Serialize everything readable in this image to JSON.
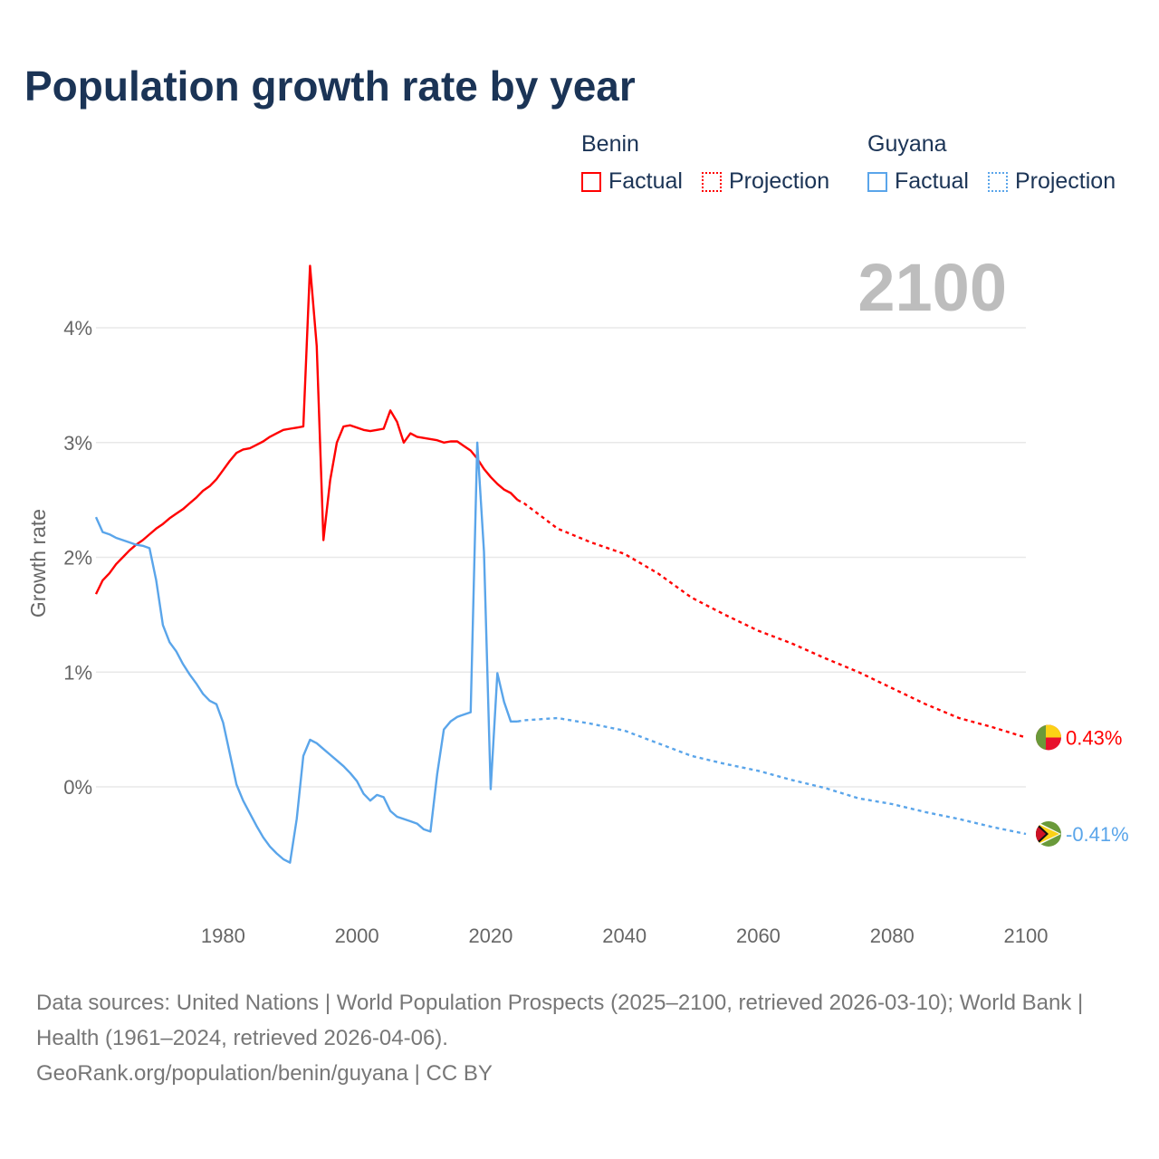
{
  "title": "Population growth rate by year",
  "legend": {
    "groups": [
      {
        "name": "Benin",
        "color": "#ff0000",
        "factual": "Factual",
        "projection": "Projection"
      },
      {
        "name": "Guyana",
        "color": "#5aa5ea",
        "factual": "Factual",
        "projection": "Projection"
      }
    ]
  },
  "year_label": "2100",
  "footer": {
    "sources": "Data sources: United Nations | World Population Prospects (2025–2100, retrieved 2026-03-10); World Bank | Health (1961–2024, retrieved 2026-04-06).",
    "credit": "GeoRank.org/population/benin/guyana | CC BY"
  },
  "chart_data": {
    "type": "line",
    "title": "Population growth rate by year",
    "xlabel": "",
    "ylabel": "Growth rate",
    "xlim": [
      1961,
      2100
    ],
    "ylim": [
      -0.9,
      4.6
    ],
    "x_ticks": [
      1980,
      2000,
      2020,
      2040,
      2060,
      2080,
      2100
    ],
    "x_tick_labels": [
      "1980",
      "2000",
      "2020",
      "2040",
      "2060",
      "2080",
      "2100"
    ],
    "y_ticks": [
      0,
      1,
      2,
      3,
      4
    ],
    "y_tick_labels": [
      "0%",
      "1%",
      "2%",
      "3%",
      "4%"
    ],
    "grid": true,
    "legend_position": "top-right",
    "series": [
      {
        "name": "Benin",
        "kind": "factual",
        "color": "#ff0000",
        "x": [
          1961,
          1962,
          1963,
          1964,
          1965,
          1966,
          1967,
          1968,
          1969,
          1970,
          1971,
          1972,
          1973,
          1974,
          1975,
          1976,
          1977,
          1978,
          1979,
          1980,
          1981,
          1982,
          1983,
          1984,
          1985,
          1986,
          1987,
          1988,
          1989,
          1990,
          1991,
          1992,
          1993,
          1994,
          1995,
          1996,
          1997,
          1998,
          1999,
          2000,
          2001,
          2002,
          2003,
          2004,
          2005,
          2006,
          2007,
          2008,
          2009,
          2010,
          2011,
          2012,
          2013,
          2014,
          2015,
          2016,
          2017,
          2018,
          2019,
          2020,
          2021,
          2022,
          2023,
          2024
        ],
        "y": [
          1.68,
          1.8,
          1.86,
          1.94,
          2.0,
          2.06,
          2.11,
          2.15,
          2.2,
          2.25,
          2.29,
          2.34,
          2.38,
          2.42,
          2.47,
          2.52,
          2.58,
          2.62,
          2.68,
          2.76,
          2.84,
          2.91,
          2.94,
          2.95,
          2.98,
          3.01,
          3.05,
          3.08,
          3.11,
          3.12,
          3.13,
          3.14,
          4.54,
          3.84,
          2.15,
          2.67,
          3.0,
          3.14,
          3.15,
          3.13,
          3.11,
          3.1,
          3.11,
          3.12,
          3.28,
          3.18,
          3.0,
          3.08,
          3.05,
          3.04,
          3.03,
          3.02,
          3.0,
          3.01,
          3.01,
          2.97,
          2.93,
          2.86,
          2.77,
          2.7,
          2.64,
          2.59,
          2.56,
          2.5
        ]
      },
      {
        "name": "Benin",
        "kind": "projection",
        "color": "#ff0000",
        "x": [
          2024,
          2025,
          2030,
          2035,
          2040,
          2045,
          2050,
          2055,
          2060,
          2065,
          2070,
          2075,
          2080,
          2085,
          2090,
          2095,
          2100
        ],
        "y": [
          2.5,
          2.47,
          2.25,
          2.13,
          2.03,
          1.86,
          1.65,
          1.5,
          1.36,
          1.25,
          1.12,
          1.0,
          0.86,
          0.72,
          0.6,
          0.52,
          0.43
        ]
      },
      {
        "name": "Guyana",
        "kind": "factual",
        "color": "#5aa5ea",
        "x": [
          1961,
          1962,
          1963,
          1964,
          1965,
          1966,
          1967,
          1968,
          1969,
          1970,
          1971,
          1972,
          1973,
          1974,
          1975,
          1976,
          1977,
          1978,
          1979,
          1980,
          1981,
          1982,
          1983,
          1984,
          1985,
          1986,
          1987,
          1988,
          1989,
          1990,
          1991,
          1992,
          1993,
          1994,
          1995,
          1996,
          1997,
          1998,
          1999,
          2000,
          2001,
          2002,
          2003,
          2004,
          2005,
          2006,
          2007,
          2008,
          2009,
          2010,
          2011,
          2012,
          2013,
          2014,
          2015,
          2016,
          2017,
          2018,
          2019,
          2020,
          2021,
          2022,
          2023,
          2024
        ],
        "y": [
          2.35,
          2.22,
          2.2,
          2.17,
          2.15,
          2.13,
          2.11,
          2.1,
          2.08,
          1.8,
          1.41,
          1.26,
          1.18,
          1.07,
          0.98,
          0.9,
          0.81,
          0.75,
          0.72,
          0.56,
          0.29,
          0.02,
          -0.12,
          -0.23,
          -0.34,
          -0.44,
          -0.52,
          -0.58,
          -0.63,
          -0.66,
          -0.28,
          0.27,
          0.41,
          0.38,
          0.33,
          0.28,
          0.23,
          0.18,
          0.12,
          0.05,
          -0.06,
          -0.12,
          -0.07,
          -0.09,
          -0.21,
          -0.26,
          -0.28,
          -0.3,
          -0.32,
          -0.37,
          -0.39,
          0.11,
          0.5,
          0.57,
          0.61,
          0.63,
          0.65,
          3.0,
          2.05,
          -0.02,
          0.99,
          0.74,
          0.57,
          0.57
        ]
      },
      {
        "name": "Guyana",
        "kind": "projection",
        "color": "#5aa5ea",
        "x": [
          2024,
          2025,
          2030,
          2035,
          2040,
          2045,
          2050,
          2055,
          2060,
          2065,
          2070,
          2075,
          2080,
          2085,
          2090,
          2095,
          2100
        ],
        "y": [
          0.57,
          0.58,
          0.6,
          0.55,
          0.49,
          0.38,
          0.27,
          0.2,
          0.14,
          0.06,
          -0.01,
          -0.1,
          -0.15,
          -0.22,
          -0.28,
          -0.35,
          -0.41
        ]
      }
    ],
    "end_labels": [
      {
        "country": "Benin",
        "value": 0.43,
        "text": "0.43%",
        "color": "#ff0000"
      },
      {
        "country": "Guyana",
        "value": -0.41,
        "text": "-0.41%",
        "color": "#5aa5ea"
      }
    ]
  }
}
